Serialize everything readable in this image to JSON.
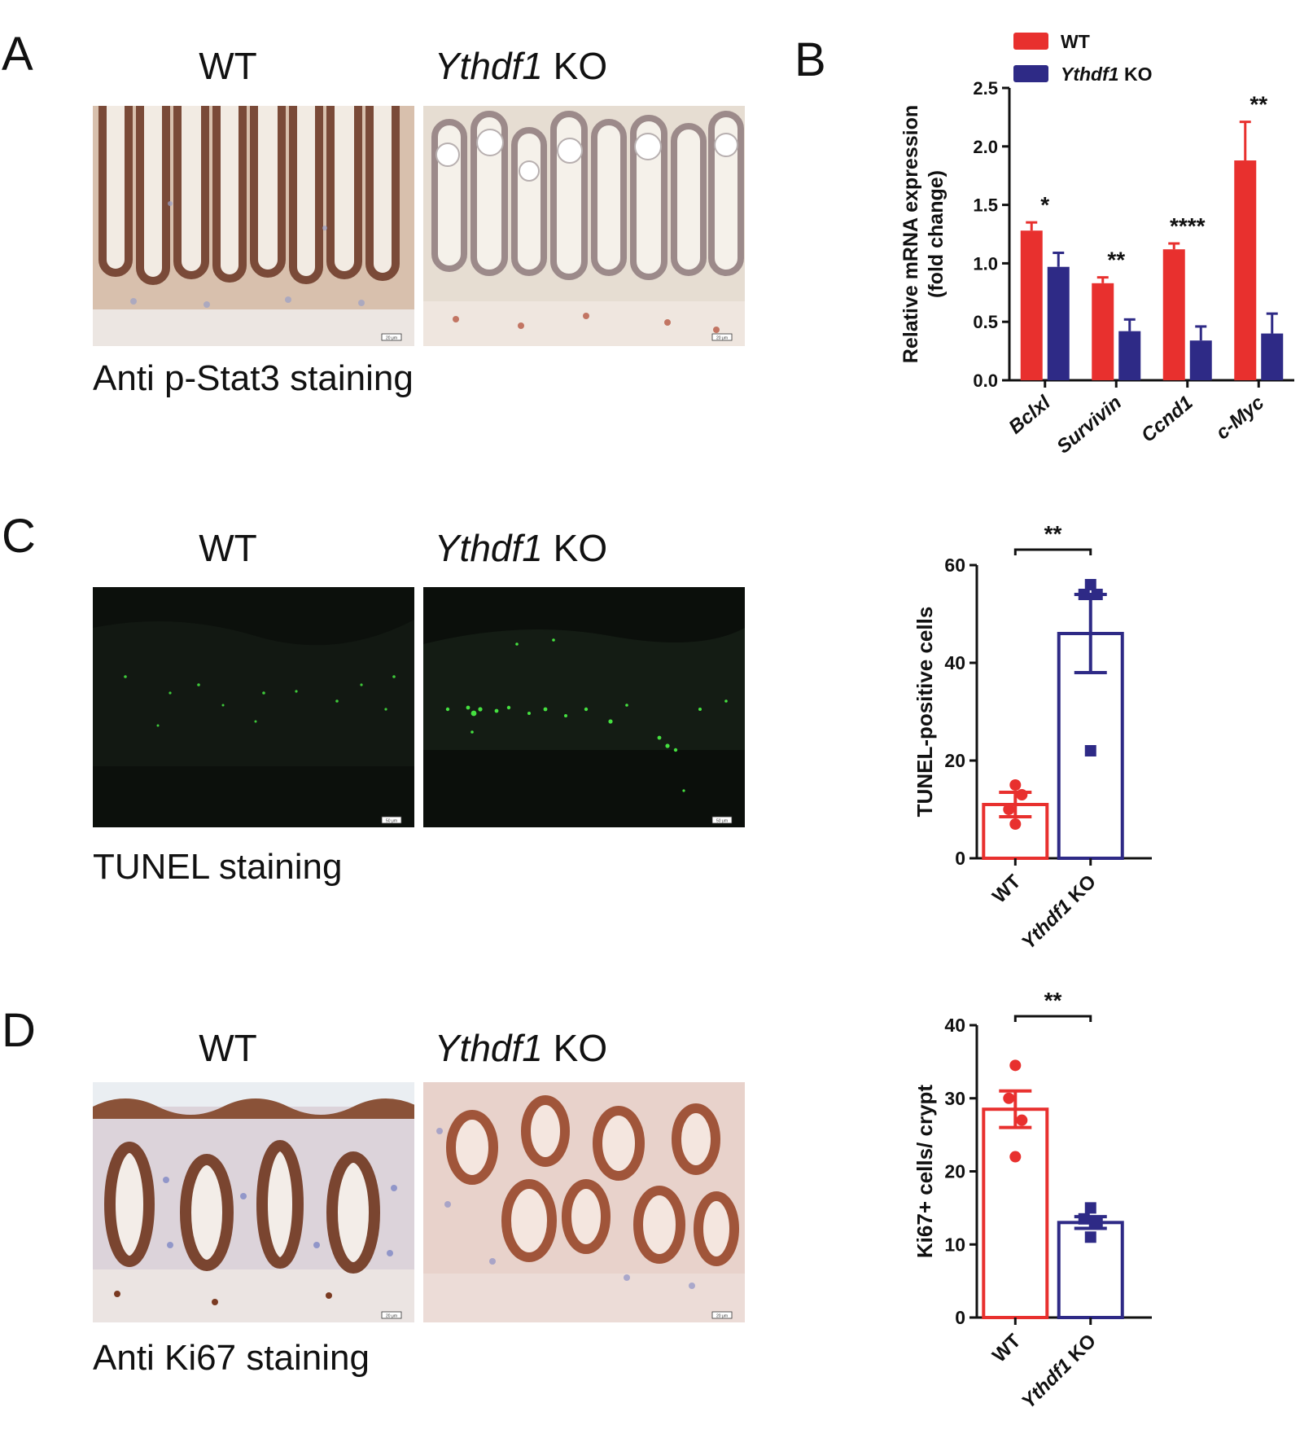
{
  "panels": {
    "A": {
      "label": "A",
      "wt_title": "WT",
      "ko_title_gene": "Ythdf1",
      "ko_title_suffix": "KO",
      "caption": "Anti p-Stat3 staining",
      "scalebar_wt": "20 μm",
      "scalebar_ko": "20 μm"
    },
    "B": {
      "label": "B"
    },
    "C": {
      "label": "C",
      "wt_title": "WT",
      "ko_title_gene": "Ythdf1",
      "ko_title_suffix": "KO",
      "caption": "TUNEL staining",
      "scalebar_wt": "50 μm",
      "scalebar_ko": "50 μm"
    },
    "D": {
      "label": "D",
      "wt_title": "WT",
      "ko_title_gene": "Ythdf1",
      "ko_title_suffix": "KO",
      "caption": "Anti Ki67 staining",
      "scalebar_wt": "20 μm",
      "scalebar_ko": "20 μm"
    }
  },
  "colors": {
    "wt": "#e8302e",
    "ko": "#2e2a86",
    "axis": "#111111"
  },
  "chart_data": [
    {
      "id": "B",
      "type": "bar",
      "ylabel_line1": "Relative mRNA expression",
      "ylabel_line2": "(fold change)",
      "ylim": [
        0,
        2.5
      ],
      "yticks": [
        "0.0",
        "0.5",
        "1.0",
        "1.5",
        "2.0",
        "2.5"
      ],
      "categories": [
        "Bclxl",
        "Survivin",
        "Ccnd1",
        "c-Myc"
      ],
      "series": [
        {
          "name": "WT",
          "values": [
            1.28,
            0.83,
            1.12,
            1.88
          ],
          "errors": [
            0.07,
            0.05,
            0.05,
            0.33
          ]
        },
        {
          "name": "Ythdf1 KO",
          "values": [
            0.97,
            0.42,
            0.34,
            0.4
          ],
          "errors": [
            0.12,
            0.1,
            0.12,
            0.17
          ]
        }
      ],
      "legend": [
        {
          "label": "WT",
          "italic": ""
        },
        {
          "label": " KO",
          "italic": "Ythdf1"
        }
      ],
      "significance": [
        "*",
        "**",
        "****",
        "**"
      ]
    },
    {
      "id": "C",
      "type": "bar",
      "ylabel": "TUNEL-positive cells",
      "ylim": [
        0,
        60
      ],
      "yticks": [
        "0",
        "20",
        "40",
        "60"
      ],
      "categories": [
        "WT",
        "Ythdf1 KO"
      ],
      "values": [
        11,
        46
      ],
      "errors": [
        2.5,
        8
      ],
      "points": [
        [
          15,
          10,
          13,
          7
        ],
        [
          56,
          54,
          54,
          22
        ]
      ],
      "significance": "**"
    },
    {
      "id": "D",
      "type": "bar",
      "ylabel": "Ki67+ cells/ crypt",
      "ylim": [
        0,
        40
      ],
      "yticks": [
        "0",
        "10",
        "20",
        "30",
        "40"
      ],
      "categories": [
        "WT",
        "Ythdf1 KO"
      ],
      "values": [
        28.5,
        13
      ],
      "errors": [
        2.5,
        0.8
      ],
      "points": [
        [
          34.5,
          30,
          27,
          22
        ],
        [
          15,
          13.5,
          13,
          11
        ]
      ],
      "significance": "**"
    }
  ]
}
